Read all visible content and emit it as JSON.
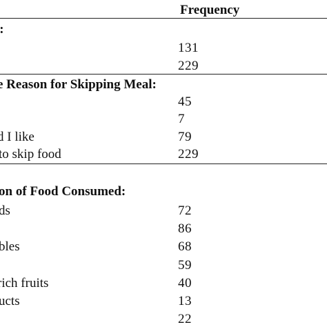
{
  "table": {
    "column_header": "Frequency",
    "sections": [
      {
        "title": "l:",
        "rows": [
          {
            "label": "",
            "value": "131"
          },
          {
            "label": "",
            "value": "229"
          }
        ]
      },
      {
        "title": "e Reason for Skipping Meal:",
        "rows": [
          {
            "label": "",
            "value": "45"
          },
          {
            "label": "",
            "value": "7"
          },
          {
            "label": "d I like",
            "value": "79"
          },
          {
            "label": "to skip food",
            "value": "229"
          }
        ]
      },
      {
        "title": "on of Food Consumed:",
        "rows": [
          {
            "label": "ds",
            "value": "72"
          },
          {
            "label": "",
            "value": "86"
          },
          {
            "label": "bles",
            "value": "68"
          },
          {
            "label": "",
            "value": "59"
          },
          {
            "label": "rich fruits",
            "value": "40"
          },
          {
            "label": "ucts",
            "value": "13"
          },
          {
            "label": "",
            "value": "22"
          }
        ]
      }
    ]
  }
}
